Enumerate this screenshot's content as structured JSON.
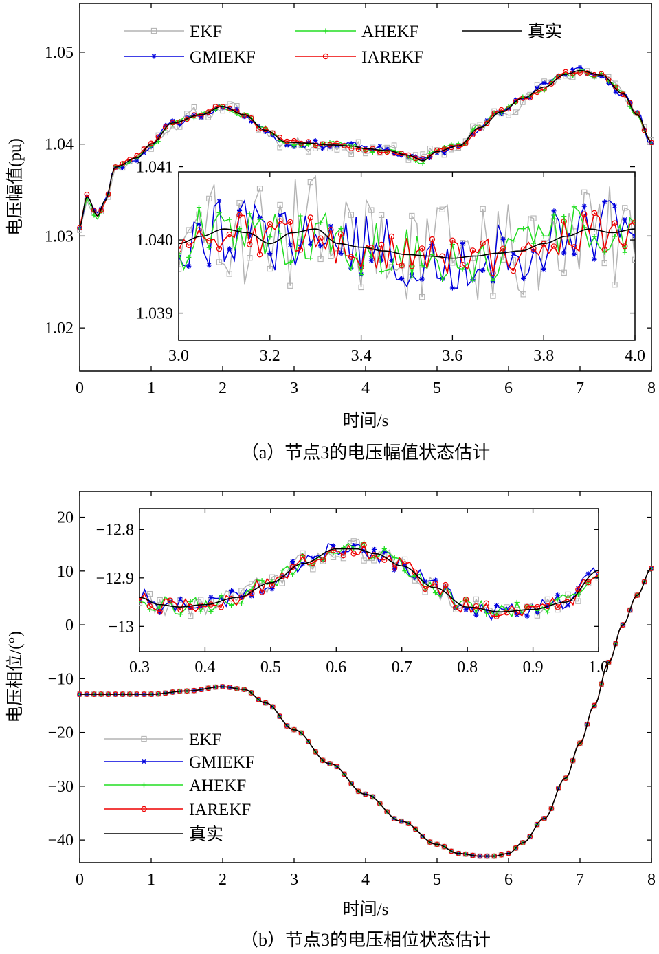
{
  "colors": {
    "EKF": "#b4b4b4",
    "GMIEKF": "#0000dd",
    "AHEKF": "#22dd22",
    "IAREKF": "#ee0000",
    "真实": "#000000"
  },
  "chart_data": [
    {
      "type": "line",
      "id": "a",
      "caption": "（a）节点3的电压幅值状态估计",
      "xlabel": "时间/s",
      "ylabel": "电压幅值(pu)",
      "xlim": [
        0,
        8
      ],
      "ylim": [
        1.0153,
        1.0553
      ],
      "xticks": [
        0,
        1,
        2,
        3,
        4,
        5,
        6,
        7,
        8
      ],
      "xtick_labels": [
        "0",
        "1",
        "2",
        "3",
        "4",
        "5",
        "6",
        "7",
        "8"
      ],
      "yticks": [
        1.02,
        1.03,
        1.04,
        1.05
      ],
      "ytick_labels": [
        "1.02",
        "1.03",
        "1.04",
        "1.05"
      ],
      "legend_position": "top",
      "legend": [
        "EKF",
        "AHEKF",
        "真实",
        "GMIEKF",
        "IAREKF"
      ],
      "true_curve": {
        "name": "真实",
        "x": [
          0,
          0.1,
          0.25,
          0.35,
          0.5,
          0.8,
          1.0,
          1.3,
          1.7,
          2.0,
          2.3,
          2.6,
          2.9,
          3.2,
          3.5,
          3.8,
          4.0,
          4.3,
          4.6,
          4.8,
          5.0,
          5.3,
          5.6,
          5.9,
          6.2,
          6.5,
          6.8,
          7.0,
          7.3,
          7.6,
          7.8,
          8.0
        ],
        "values": [
          1.031,
          1.0343,
          1.0322,
          1.0338,
          1.0375,
          1.0385,
          1.04,
          1.0423,
          1.0432,
          1.0441,
          1.0432,
          1.0415,
          1.0402,
          1.0401,
          1.0399,
          1.0398,
          1.0395,
          1.0393,
          1.0388,
          1.0382,
          1.0392,
          1.0398,
          1.0418,
          1.0435,
          1.045,
          1.0462,
          1.0476,
          1.048,
          1.0475,
          1.0455,
          1.0432,
          1.0402
        ]
      },
      "series": [
        {
          "name": "EKF",
          "marker": "square",
          "noise": 0.0014,
          "seed": 11
        },
        {
          "name": "GMIEKF",
          "marker": "asterisk",
          "noise": 0.0007,
          "seed": 23
        },
        {
          "name": "AHEKF",
          "marker": "plus",
          "noise": 0.0006,
          "seed": 37
        },
        {
          "name": "IAREKF",
          "marker": "circle",
          "noise": 0.0004,
          "seed": 41
        }
      ],
      "inset": {
        "xlim": [
          3.0,
          4.0
        ],
        "ylim": [
          1.03863,
          1.04093
        ],
        "xticks": [
          3.0,
          3.2,
          3.4,
          3.6,
          3.8,
          4.0
        ],
        "xtick_labels": [
          "3.0",
          "3.2",
          "3.4",
          "3.6",
          "3.8",
          "4.0"
        ],
        "yticks": [
          1.039,
          1.04,
          1.041
        ],
        "ytick_labels": [
          "1.039",
          "1.040",
          "1.041"
        ],
        "true_curve": {
          "x": [
            3.0,
            3.05,
            3.1,
            3.15,
            3.2,
            3.25,
            3.3,
            3.35,
            3.4,
            3.45,
            3.5,
            3.55,
            3.6,
            3.65,
            3.7,
            3.75,
            3.8,
            3.85,
            3.9,
            3.95,
            4.0
          ],
          "values": [
            1.03995,
            1.04005,
            1.04015,
            1.0401,
            1.03995,
            1.0401,
            1.04015,
            1.03995,
            1.0399,
            1.03985,
            1.0398,
            1.03978,
            1.03975,
            1.03978,
            1.03982,
            1.03985,
            1.03995,
            1.04005,
            1.04015,
            1.0401,
            1.04015
          ]
        },
        "noise": {
          "EKF": 0.00075,
          "GMIEKF": 0.00045,
          "AHEKF": 0.0004,
          "IAREKF": 0.00028
        }
      }
    },
    {
      "type": "line",
      "id": "b",
      "caption": "（b）节点3的电压相位状态估计",
      "xlabel": "时间/s",
      "ylabel": "电压相位/(°)",
      "xlim": [
        0,
        8
      ],
      "ylim": [
        -44.2,
        24.8
      ],
      "xticks": [
        0,
        1,
        2,
        3,
        4,
        5,
        6,
        7,
        8
      ],
      "xtick_labels": [
        "0",
        "1",
        "2",
        "3",
        "4",
        "5",
        "6",
        "7",
        "8"
      ],
      "yticks": [
        20,
        10,
        0,
        -10,
        -20,
        -30,
        -40
      ],
      "ytick_labels": [
        "20",
        "10",
        "0",
        "−10",
        "−20",
        "−30",
        "−40"
      ],
      "legend_position": "lower-left",
      "legend": [
        "EKF",
        "GMIEKF",
        "AHEKF",
        "IAREKF",
        "真实"
      ],
      "true_curve": {
        "name": "真实",
        "x": [
          0,
          0.5,
          1.0,
          1.5,
          2.0,
          2.3,
          2.6,
          3.0,
          3.5,
          4.0,
          4.5,
          5.0,
          5.3,
          5.6,
          5.8,
          6.0,
          6.2,
          6.5,
          6.8,
          7.0,
          7.2,
          7.4,
          7.6,
          7.8,
          8.0
        ],
        "values": [
          -12.9,
          -12.9,
          -12.9,
          -12.3,
          -11.5,
          -12.0,
          -14.5,
          -19.5,
          -25.8,
          -31.5,
          -36.5,
          -40.8,
          -42.5,
          -43.0,
          -43.0,
          -42.5,
          -40.5,
          -36.0,
          -28.5,
          -22.0,
          -15.0,
          -7.0,
          0.0,
          5.5,
          10.5
        ]
      },
      "series": [
        {
          "name": "EKF",
          "marker": "square",
          "noise": 0.02,
          "seed": 5
        },
        {
          "name": "GMIEKF",
          "marker": "asterisk",
          "noise": 0.02,
          "seed": 7
        },
        {
          "name": "AHEKF",
          "marker": "plus",
          "noise": 0.02,
          "seed": 9
        },
        {
          "name": "IAREKF",
          "marker": "circle",
          "noise": 0.02,
          "seed": 13
        }
      ],
      "inset": {
        "xlim": [
          0.3,
          1.0
        ],
        "ylim": [
          -13.052,
          -12.757
        ],
        "xticks": [
          0.3,
          0.4,
          0.5,
          0.6,
          0.7,
          0.8,
          0.9,
          1.0
        ],
        "xtick_labels": [
          "0.3",
          "0.4",
          "0.5",
          "0.6",
          "0.7",
          "0.8",
          "0.9",
          "1.0"
        ],
        "yticks": [
          -12.8,
          -12.9,
          -13.0
        ],
        "ytick_labels": [
          "−12.8",
          "−12.9",
          "−13"
        ],
        "true_curve": {
          "x": [
            0.3,
            0.33,
            0.36,
            0.4,
            0.45,
            0.5,
            0.55,
            0.6,
            0.63,
            0.66,
            0.7,
            0.75,
            0.8,
            0.85,
            0.9,
            0.95,
            1.0
          ],
          "values": [
            -12.94,
            -12.955,
            -12.96,
            -12.955,
            -12.94,
            -12.91,
            -12.87,
            -12.84,
            -12.84,
            -12.85,
            -12.875,
            -12.92,
            -12.96,
            -12.97,
            -12.965,
            -12.95,
            -12.885
          ]
        },
        "noise": {
          "EKF": 0.022,
          "GMIEKF": 0.018,
          "AHEKF": 0.018,
          "IAREKF": 0.016
        }
      }
    }
  ]
}
